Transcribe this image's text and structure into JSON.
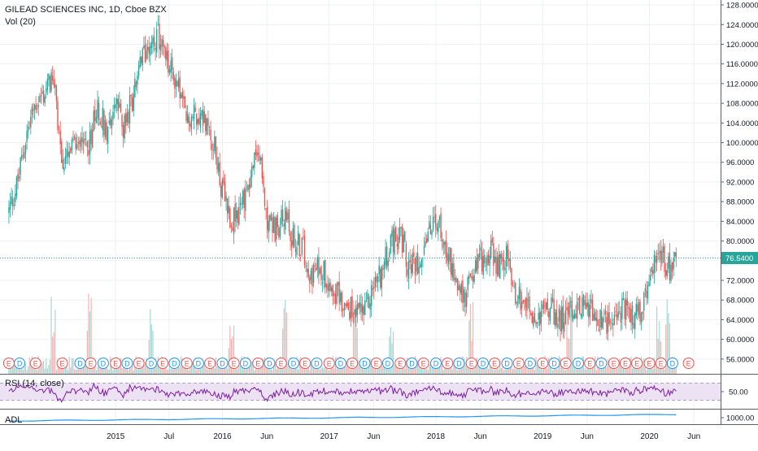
{
  "legend": {
    "main_title": "GILEAD SCIENCES INC, 1D, Cboe BZX",
    "volume_label": "Vol (20)",
    "rsi_label": "RSI (14, close)",
    "adl_label": "ADL"
  },
  "colors": {
    "up": "#26a69a",
    "down": "#ef5350",
    "rsi_line": "#7b1fa2",
    "rsi_band": "#ede1f4",
    "adl_line": "#2196f3",
    "price_label_bg": "#26a69a",
    "grid": "#eef0f3",
    "earnings_red": "#ef5350",
    "dividend_blue": "#2196f3"
  },
  "chart_data": {
    "type": "candlestick",
    "last_price": 76.54,
    "last_price_label": "76.5400",
    "price_axis": {
      "ylim": [
        53.0,
        129.0
      ],
      "ticks": [
        "56.0000",
        "60.0000",
        "64.0000",
        "68.0000",
        "72.0000",
        "76.0000",
        "80.0000",
        "84.0000",
        "88.0000",
        "92.0000",
        "96.0000",
        "100.0000",
        "104.0000",
        "108.0000",
        "112.0000",
        "116.0000",
        "120.0000",
        "124.0000",
        "128.0000"
      ]
    },
    "x_axis_labels": [
      "2015",
      "Jul",
      "2016",
      "Jun",
      "2017",
      "Jun",
      "2018",
      "Jun",
      "2019",
      "Jun",
      "2020",
      "Jun"
    ],
    "x_tick_months": [
      12,
      18,
      24,
      29,
      36,
      41,
      48,
      53,
      60,
      65,
      72,
      77
    ],
    "date_range": [
      "2014-02",
      "2020-04"
    ],
    "price_anchors": [
      {
        "m": 0,
        "p": 86
      },
      {
        "m": 1,
        "p": 92
      },
      {
        "m": 2,
        "p": 102
      },
      {
        "m": 3,
        "p": 108
      },
      {
        "m": 4,
        "p": 110
      },
      {
        "m": 5,
        "p": 114
      },
      {
        "m": 6,
        "p": 95
      },
      {
        "m": 7,
        "p": 98
      },
      {
        "m": 8,
        "p": 102
      },
      {
        "m": 9,
        "p": 100
      },
      {
        "m": 10,
        "p": 107
      },
      {
        "m": 11,
        "p": 103
      },
      {
        "m": 12,
        "p": 108
      },
      {
        "m": 13,
        "p": 103
      },
      {
        "m": 14,
        "p": 110
      },
      {
        "m": 15,
        "p": 117
      },
      {
        "m": 16,
        "p": 122
      },
      {
        "m": 17,
        "p": 121
      },
      {
        "m": 18,
        "p": 115
      },
      {
        "m": 19,
        "p": 112
      },
      {
        "m": 20,
        "p": 104
      },
      {
        "m": 21,
        "p": 106
      },
      {
        "m": 22,
        "p": 105
      },
      {
        "m": 23,
        "p": 100
      },
      {
        "m": 24,
        "p": 90
      },
      {
        "m": 25,
        "p": 84
      },
      {
        "m": 26,
        "p": 87
      },
      {
        "m": 27,
        "p": 92
      },
      {
        "m": 28,
        "p": 99
      },
      {
        "m": 29,
        "p": 85
      },
      {
        "m": 30,
        "p": 82
      },
      {
        "m": 31,
        "p": 85
      },
      {
        "m": 32,
        "p": 80
      },
      {
        "m": 33,
        "p": 79
      },
      {
        "m": 34,
        "p": 73
      },
      {
        "m": 35,
        "p": 75
      },
      {
        "m": 36,
        "p": 72
      },
      {
        "m": 37,
        "p": 69
      },
      {
        "m": 38,
        "p": 66
      },
      {
        "m": 39,
        "p": 67
      },
      {
        "m": 40,
        "p": 65
      },
      {
        "m": 41,
        "p": 71
      },
      {
        "m": 42,
        "p": 74
      },
      {
        "m": 43,
        "p": 80
      },
      {
        "m": 44,
        "p": 82
      },
      {
        "m": 45,
        "p": 74
      },
      {
        "m": 46,
        "p": 76
      },
      {
        "m": 47,
        "p": 81
      },
      {
        "m": 48,
        "p": 84
      },
      {
        "m": 49,
        "p": 80
      },
      {
        "m": 50,
        "p": 74
      },
      {
        "m": 51,
        "p": 68
      },
      {
        "m": 52,
        "p": 72
      },
      {
        "m": 53,
        "p": 76
      },
      {
        "m": 54,
        "p": 78
      },
      {
        "m": 55,
        "p": 75
      },
      {
        "m": 56,
        "p": 77
      },
      {
        "m": 57,
        "p": 69
      },
      {
        "m": 58,
        "p": 68
      },
      {
        "m": 59,
        "p": 63
      },
      {
        "m": 60,
        "p": 66
      },
      {
        "m": 61,
        "p": 66
      },
      {
        "m": 62,
        "p": 64
      },
      {
        "m": 63,
        "p": 65
      },
      {
        "m": 64,
        "p": 67
      },
      {
        "m": 65,
        "p": 67
      },
      {
        "m": 66,
        "p": 64
      },
      {
        "m": 67,
        "p": 63
      },
      {
        "m": 68,
        "p": 65
      },
      {
        "m": 69,
        "p": 66
      },
      {
        "m": 70,
        "p": 64
      },
      {
        "m": 71,
        "p": 66
      },
      {
        "m": 72,
        "p": 70
      },
      {
        "m": 73,
        "p": 80
      },
      {
        "m": 74,
        "p": 74
      },
      {
        "m": 75,
        "p": 76.54
      }
    ],
    "volume_spike_months": [
      5,
      9,
      16,
      25,
      31,
      39,
      43,
      52,
      63,
      73,
      74
    ],
    "event_markers": [
      {
        "m": 0.0,
        "t": "E"
      },
      {
        "m": 1.2,
        "t": "D"
      },
      {
        "m": 3.0,
        "t": "E"
      },
      {
        "m": 6.0,
        "t": "E"
      },
      {
        "m": 8.0,
        "t": "D"
      },
      {
        "m": 9.2,
        "t": "E"
      },
      {
        "m": 10.6,
        "t": "D"
      },
      {
        "m": 12.0,
        "t": "E"
      },
      {
        "m": 13.3,
        "t": "D"
      },
      {
        "m": 14.6,
        "t": "E"
      },
      {
        "m": 16.0,
        "t": "D"
      },
      {
        "m": 17.3,
        "t": "E"
      },
      {
        "m": 18.6,
        "t": "D"
      },
      {
        "m": 20.0,
        "t": "E"
      },
      {
        "m": 21.3,
        "t": "D"
      },
      {
        "m": 22.6,
        "t": "E"
      },
      {
        "m": 24.0,
        "t": "D"
      },
      {
        "m": 25.3,
        "t": "E"
      },
      {
        "m": 26.6,
        "t": "D"
      },
      {
        "m": 28.0,
        "t": "E"
      },
      {
        "m": 29.3,
        "t": "D"
      },
      {
        "m": 30.6,
        "t": "E"
      },
      {
        "m": 32.0,
        "t": "D"
      },
      {
        "m": 33.3,
        "t": "E"
      },
      {
        "m": 34.6,
        "t": "D"
      },
      {
        "m": 36.0,
        "t": "E"
      },
      {
        "m": 37.3,
        "t": "D"
      },
      {
        "m": 38.6,
        "t": "E"
      },
      {
        "m": 40.0,
        "t": "D"
      },
      {
        "m": 41.3,
        "t": "E"
      },
      {
        "m": 42.6,
        "t": "D"
      },
      {
        "m": 44.0,
        "t": "E"
      },
      {
        "m": 45.3,
        "t": "D"
      },
      {
        "m": 46.6,
        "t": "E"
      },
      {
        "m": 48.0,
        "t": "D"
      },
      {
        "m": 49.3,
        "t": "E"
      },
      {
        "m": 50.6,
        "t": "D"
      },
      {
        "m": 52.0,
        "t": "E"
      },
      {
        "m": 53.3,
        "t": "D"
      },
      {
        "m": 54.6,
        "t": "E"
      },
      {
        "m": 56.0,
        "t": "D"
      },
      {
        "m": 57.3,
        "t": "E"
      },
      {
        "m": 58.6,
        "t": "D"
      },
      {
        "m": 60.0,
        "t": "E"
      },
      {
        "m": 61.3,
        "t": "D"
      },
      {
        "m": 62.6,
        "t": "E"
      },
      {
        "m": 64.0,
        "t": "D"
      },
      {
        "m": 65.3,
        "t": "E"
      },
      {
        "m": 66.6,
        "t": "D"
      },
      {
        "m": 68.0,
        "t": "E"
      },
      {
        "m": 69.3,
        "t": "E"
      },
      {
        "m": 70.6,
        "t": "E"
      },
      {
        "m": 72.0,
        "t": "E"
      },
      {
        "m": 73.3,
        "t": "E"
      },
      {
        "m": 74.6,
        "t": "D"
      },
      {
        "m": 76.4,
        "t": "E"
      }
    ],
    "rsi": {
      "tick": "50.00",
      "upper_band": 70,
      "lower_band": 30,
      "range": [
        10,
        90
      ]
    },
    "adl": {
      "tick": "1000.00",
      "start": 0,
      "end": 1000
    }
  }
}
